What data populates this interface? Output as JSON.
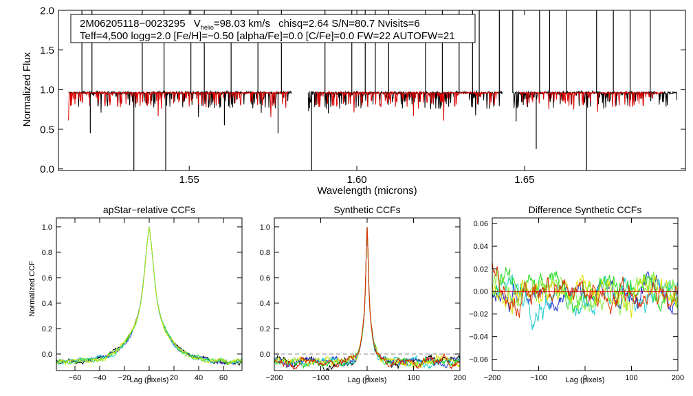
{
  "chart_data": [
    {
      "type": "line",
      "panel": "spectrum",
      "title": "",
      "xlabel": "Wavelength (microns)",
      "ylabel": "Normalized Flux",
      "xlim": [
        1.511,
        1.698
      ],
      "ylim": [
        -0.02,
        2.0
      ],
      "xticks": [
        "1.55",
        "1.60",
        "1.65"
      ],
      "xtick_values": [
        1.55,
        1.6,
        1.65
      ],
      "yticks": [
        "0.0",
        "0.5",
        "1.0",
        "1.5",
        "2.0"
      ],
      "ytick_values": [
        0.0,
        0.5,
        1.0,
        1.5,
        2.0
      ],
      "info": {
        "line1_id": "2M06205118−0023295",
        "line1_vhelio_prefix": "V",
        "line1_vhelio_sub": "helio",
        "line1_vhelio_value": "=98.03 km/s",
        "line1_rest": "chisq=2.64  S/N=80.7  Nvisits=6",
        "line2": "Teff=4,500 logg=2.0 [Fe/H]=−0.50 [alpha/Fe]=0.0 [C/Fe]=0.0 FW=22 AUTOFW=21"
      },
      "chip_ranges": [
        [
          1.514,
          1.5805
        ],
        [
          1.5855,
          1.6435
        ],
        [
          1.6465,
          1.6955
        ]
      ],
      "model_ranges": [
        [
          1.514,
          1.5795
        ],
        [
          1.5875,
          1.6425
        ],
        [
          1.6485,
          1.6915
        ]
      ],
      "continuum": 0.96,
      "series": [
        {
          "name": "observed spectrum",
          "color": "#000000"
        },
        {
          "name": "synthetic model",
          "color": "#dd0000"
        }
      ],
      "spikes_up": [
        1.518,
        1.521,
        1.536,
        1.5425,
        1.5505,
        1.5545,
        1.5625,
        1.5705,
        1.5775,
        1.5905,
        1.5985,
        1.6025,
        1.6055,
        1.6095,
        1.6205,
        1.6255,
        1.6305,
        1.6345,
        1.6365,
        1.6425,
        1.6465,
        1.6545,
        1.6575,
        1.6625,
        1.6715,
        1.6765,
        1.6815,
        1.6875
      ],
      "dips": [
        [
          1.5205,
          0.45
        ],
        [
          1.5335,
          -0.02
        ],
        [
          1.543,
          -0.02
        ],
        [
          1.5605,
          0.55
        ],
        [
          1.5765,
          0.45
        ],
        [
          1.5865,
          -0.02
        ],
        [
          1.5915,
          0.7
        ],
        [
          1.6475,
          0.6
        ],
        [
          1.6535,
          0.25
        ],
        [
          1.6685,
          -0.02
        ]
      ]
    },
    {
      "type": "line",
      "panel": "apstar-ccf",
      "title": "apStar−relative CCFs",
      "xlabel": "Lag (pixels)",
      "ylabel": "Normalized CCF",
      "xlim": [
        -75,
        75
      ],
      "ylim": [
        -0.13,
        1.07
      ],
      "xticks": [
        "−60",
        "−40",
        "−20",
        "0",
        "20",
        "40",
        "60"
      ],
      "xtick_values": [
        -60,
        -40,
        -20,
        0,
        20,
        40,
        60
      ],
      "yticks": [
        "0.0",
        "0.2",
        "0.4",
        "0.6",
        "0.8",
        "1.0"
      ],
      "ytick_values": [
        0.0,
        0.2,
        0.4,
        0.6,
        0.8,
        1.0
      ],
      "peak_value": 1.0,
      "series": [
        {
          "name": "visit 1",
          "color": "#000000"
        },
        {
          "name": "visit 2",
          "color": "#2233cc"
        },
        {
          "name": "visit 3",
          "color": "#22cccc"
        },
        {
          "name": "visit 4",
          "color": "#22dd22"
        },
        {
          "name": "visit 5",
          "color": "#dddd00"
        },
        {
          "name": "visit 6",
          "color": "#88ee44"
        }
      ]
    },
    {
      "type": "line",
      "panel": "synthetic-ccf",
      "title": "Synthetic CCFs",
      "xlabel": "Lag (pixels)",
      "ylabel": "",
      "xlim": [
        -200,
        200
      ],
      "ylim": [
        -0.13,
        1.07
      ],
      "xticks": [
        "−200",
        "−100",
        "0",
        "100",
        "200"
      ],
      "xtick_values": [
        -200,
        -100,
        0,
        100,
        200
      ],
      "yticks": [
        "0.0",
        "0.2",
        "0.4",
        "0.6",
        "0.8",
        "1.0"
      ],
      "ytick_values": [
        0.0,
        0.2,
        0.4,
        0.6,
        0.8,
        1.0
      ],
      "peak_value": 1.0,
      "series": [
        {
          "name": "visit 1",
          "color": "#000000"
        },
        {
          "name": "visit 2",
          "color": "#2233cc"
        },
        {
          "name": "visit 3",
          "color": "#22cccc"
        },
        {
          "name": "visit 4",
          "color": "#22dd22"
        },
        {
          "name": "visit 5",
          "color": "#dddd00"
        },
        {
          "name": "visit 6",
          "color": "#dd2200"
        }
      ]
    },
    {
      "type": "line",
      "panel": "difference-ccf",
      "title": "Difference Synthetic CCFs",
      "xlabel": "Lag (pixels)",
      "ylabel": "",
      "xlim": [
        -200,
        200
      ],
      "ylim": [
        -0.07,
        0.065
      ],
      "xticks": [
        "−200",
        "−100",
        "0",
        "100",
        "200"
      ],
      "xtick_values": [
        -200,
        -100,
        0,
        100,
        200
      ],
      "yticks": [
        "−0.06",
        "−0.04",
        "−0.02",
        "0.00",
        "0.02",
        "0.04",
        "0.06"
      ],
      "ytick_values": [
        -0.06,
        -0.04,
        -0.02,
        0.0,
        0.02,
        0.04,
        0.06
      ],
      "zero_line_color": "#dd0000",
      "series": [
        {
          "name": "visit 1",
          "color": "#2233cc"
        },
        {
          "name": "visit 2",
          "color": "#22cccc"
        },
        {
          "name": "visit 3",
          "color": "#22dd22"
        },
        {
          "name": "visit 4",
          "color": "#dddd00"
        },
        {
          "name": "visit 5",
          "color": "#88ee44"
        },
        {
          "name": "visit 6",
          "color": "#dd3300"
        }
      ]
    }
  ]
}
